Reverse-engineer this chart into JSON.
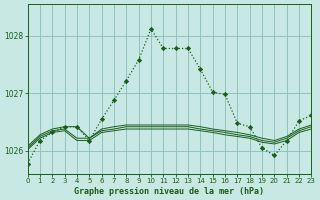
{
  "title": "Graphe pression niveau de la mer (hPa)",
  "bg": "#c8e8e4",
  "grid_color": "#88bcb8",
  "line_color": "#1a5c1a",
  "xlim": [
    0,
    23
  ],
  "ylim": [
    1025.6,
    1028.55
  ],
  "yticks": [
    1026,
    1027,
    1028
  ],
  "xticks": [
    0,
    1,
    2,
    3,
    4,
    5,
    6,
    7,
    8,
    9,
    10,
    11,
    12,
    13,
    14,
    15,
    16,
    17,
    18,
    19,
    20,
    21,
    22,
    23
  ],
  "line_main_x": [
    0,
    1,
    2,
    3,
    4,
    5,
    6,
    7,
    8,
    9,
    10,
    11,
    12,
    13,
    14,
    15,
    16,
    17,
    18,
    19,
    20,
    21,
    22,
    23
  ],
  "line_main_y": [
    1025.78,
    1026.18,
    1026.32,
    1026.42,
    1026.42,
    1026.18,
    1026.55,
    1026.88,
    1027.22,
    1027.58,
    1028.12,
    1027.78,
    1027.78,
    1027.78,
    1027.42,
    1027.02,
    1026.98,
    1026.48,
    1026.42,
    1026.05,
    1025.92,
    1026.18,
    1026.52,
    1026.62
  ],
  "flat_lines": [
    [
      1026.08,
      1026.28,
      1026.38,
      1026.42,
      1026.42,
      1026.22,
      1026.38,
      1026.42,
      1026.45,
      1026.45,
      1026.45,
      1026.45,
      1026.45,
      1026.45,
      1026.42,
      1026.38,
      1026.35,
      1026.32,
      1026.28,
      1026.22,
      1026.18,
      1026.25,
      1026.38,
      1026.45
    ],
    [
      1026.05,
      1026.25,
      1026.35,
      1026.38,
      1026.22,
      1026.22,
      1026.35,
      1026.38,
      1026.42,
      1026.42,
      1026.42,
      1026.42,
      1026.42,
      1026.42,
      1026.38,
      1026.35,
      1026.32,
      1026.28,
      1026.25,
      1026.18,
      1026.15,
      1026.22,
      1026.35,
      1026.42
    ],
    [
      1026.02,
      1026.22,
      1026.32,
      1026.35,
      1026.18,
      1026.18,
      1026.32,
      1026.35,
      1026.38,
      1026.38,
      1026.38,
      1026.38,
      1026.38,
      1026.38,
      1026.35,
      1026.32,
      1026.28,
      1026.25,
      1026.22,
      1026.15,
      1026.12,
      1026.18,
      1026.32,
      1026.38
    ]
  ]
}
